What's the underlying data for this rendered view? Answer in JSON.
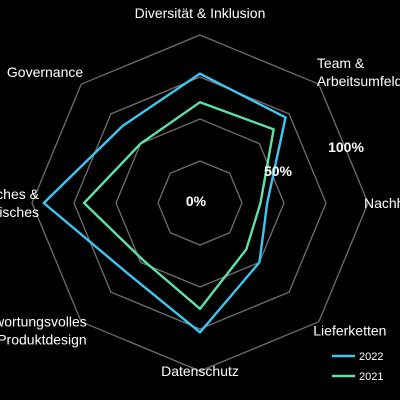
{
  "chart_data": {
    "type": "radar",
    "axes": [
      "Diversität & Inklusion",
      "Team & Arbeitsumfeld",
      "Nachhaltigkeit",
      "Lieferketten",
      "Datenschutz",
      "Verantwortungsvolles Produktdesign",
      "Ethisches & Unternehmerisches",
      "Governance"
    ],
    "axis_lines": [
      [
        "Diversität & Inklusion"
      ],
      [
        "Team &",
        "Arbeitsumfeld"
      ],
      [
        "Nachhaltigkeit"
      ],
      [
        "Lieferketten"
      ],
      [
        "Datenschutz"
      ],
      [
        "Verantwortungsvolles",
        "Produktdesign"
      ],
      [
        "Ethisches &",
        "Unternehmerisches"
      ],
      [
        "Governance"
      ]
    ],
    "tick_labels": [
      "0%",
      "50%",
      "100%"
    ],
    "range": [
      0,
      100
    ],
    "grid": true,
    "series": [
      {
        "name": "2022",
        "color": "#3ec6f0",
        "values": [
          77,
          72,
          40,
          50,
          77,
          60,
          93,
          65
        ]
      },
      {
        "name": "2021",
        "color": "#5fe0a8",
        "values": [
          60,
          62,
          36,
          39,
          63,
          48,
          69,
          50
        ]
      }
    ],
    "legend_position": "bottom-right"
  }
}
